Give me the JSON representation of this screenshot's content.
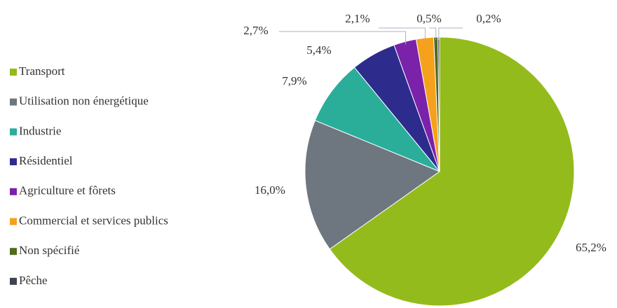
{
  "chart_data": {
    "type": "pie",
    "categories": [
      "Transport",
      "Utilisation non énergétique",
      "Industrie",
      "Résidentiel",
      "Agriculture et fôrets",
      "Commercial et services publics",
      "Non spécifié",
      "Pêche"
    ],
    "values": [
      65.2,
      16.0,
      7.9,
      5.4,
      2.7,
      2.1,
      0.5,
      0.2
    ],
    "value_labels": [
      "65,2%",
      "16,0%",
      "7,9%",
      "5,4%",
      "2,7%",
      "2,1%",
      "0,5%",
      "0,2%"
    ],
    "colors": [
      "#93bb1c",
      "#6e7680",
      "#2aae9a",
      "#2d2b8c",
      "#7a22aa",
      "#f5a11c",
      "#4f6b1d",
      "#3d4550"
    ],
    "legend": "left"
  }
}
